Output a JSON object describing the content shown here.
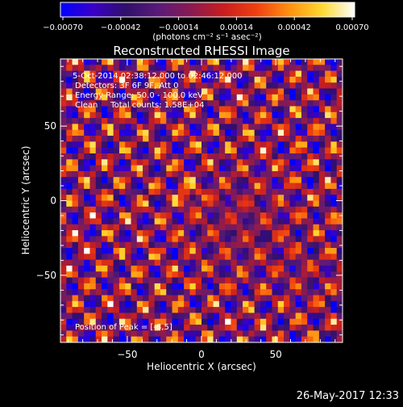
{
  "chart_data": {
    "type": "heatmap",
    "title": "Reconstructed RHESSI Image",
    "xlabel": "Heliocentric X (arcsec)",
    "ylabel": "Heliocentric Y (arcsec)",
    "xlim": [
      -95,
      95
    ],
    "ylim": [
      -95,
      95
    ],
    "x_ticks": [
      -50,
      0,
      50
    ],
    "y_ticks": [
      -50,
      0,
      50
    ],
    "x_tick_labels": [
      "−50",
      "0",
      "50"
    ],
    "y_tick_labels": [
      "−50",
      "0",
      "50"
    ],
    "colorbar": {
      "range": [
        -0.0007,
        0.0007
      ],
      "tick_labels": [
        "−0.00070",
        "−0.00042",
        "−0.00014",
        "0.00014",
        "0.00042",
        "0.00070"
      ],
      "unit_label": "(photons cm⁻² s⁻¹ asec⁻²)",
      "colors": [
        "#0000ff",
        "#3a00c8",
        "#30106a",
        "#5a1a7a",
        "#8a1a50",
        "#c81e1e",
        "#f04010",
        "#ff9010",
        "#ffd830",
        "#ffffff"
      ]
    },
    "annotations": [
      "5-Oct-2014 02:38:12.000 to 02:46:12.000",
      "Detectors: 3F 6F 9F, Att 0",
      "Energy Range: 50.0 - 100.0 keV",
      "Clean     Total counts: 1.58E+04"
    ],
    "peak_label": "Position of Peak = [-8,5]",
    "peak_position": [
      -8,
      5
    ],
    "grid_cells": 48
  },
  "footer": {
    "timestamp": "26-May-2017 12:33"
  }
}
